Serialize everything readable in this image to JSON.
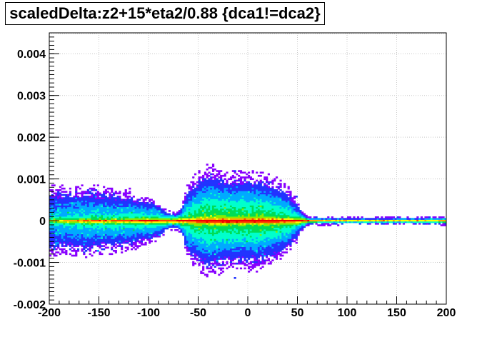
{
  "chart_data": {
    "type": "heatmap",
    "title": "scaledDelta:z2+15*eta2/0.88 {dca1!=dca2}",
    "xlabel": "",
    "ylabel": "",
    "xlim": [
      -200,
      200
    ],
    "ylim": [
      -0.002,
      0.0045
    ],
    "x_ticks": [
      -200,
      -150,
      -100,
      -50,
      0,
      50,
      100,
      150,
      200
    ],
    "x_tick_labels": [
      "-200",
      "-150",
      "-100",
      "-50",
      "0",
      "50",
      "100",
      "150",
      "200"
    ],
    "y_ticks": [
      -0.002,
      -0.001,
      0,
      0.001,
      0.002,
      0.003,
      0.004
    ],
    "y_tick_labels": [
      "-0.002",
      "-0.001",
      "0",
      "0.001",
      "0.002",
      "0.003",
      "0.004"
    ],
    "grid": true,
    "colormap": [
      "#8800ff",
      "#2233ff",
      "#00aaff",
      "#00ffcc",
      "#00dd55",
      "#88ee00",
      "#ffff00",
      "#ffaa00",
      "#ff4400",
      "#ee0000"
    ],
    "band_profile": {
      "x": [
        -200,
        -190,
        -180,
        -160,
        -140,
        -120,
        -100,
        -90,
        -80,
        -75,
        -70,
        -65,
        -60,
        -50,
        -40,
        -30,
        -20,
        -10,
        0,
        10,
        20,
        30,
        40,
        45,
        50,
        55,
        60,
        70,
        100,
        150,
        190,
        200
      ],
      "spread_upper": [
        0.0012,
        0.0011,
        0.0011,
        0.0011,
        0.001,
        0.0009,
        0.0007,
        0.00055,
        0.0003,
        0.00025,
        0.0003,
        0.0006,
        0.0011,
        0.0014,
        0.0016,
        0.0015,
        0.0014,
        0.0014,
        0.0014,
        0.0014,
        0.0013,
        0.0012,
        0.001,
        0.0008,
        0.0006,
        0.0003,
        0.0001,
        6e-05,
        5e-05,
        5e-05,
        7e-05,
        0.0001
      ],
      "core_intensity": [
        0.55,
        0.6,
        0.65,
        0.7,
        0.7,
        0.75,
        0.8,
        0.8,
        0.75,
        0.75,
        0.8,
        0.85,
        0.9,
        0.95,
        1.0,
        1.0,
        1.0,
        1.0,
        1.0,
        1.0,
        1.0,
        0.95,
        0.9,
        0.85,
        0.8,
        0.75,
        0.7,
        0.65,
        0.6,
        0.6,
        0.6,
        0.6
      ]
    }
  }
}
